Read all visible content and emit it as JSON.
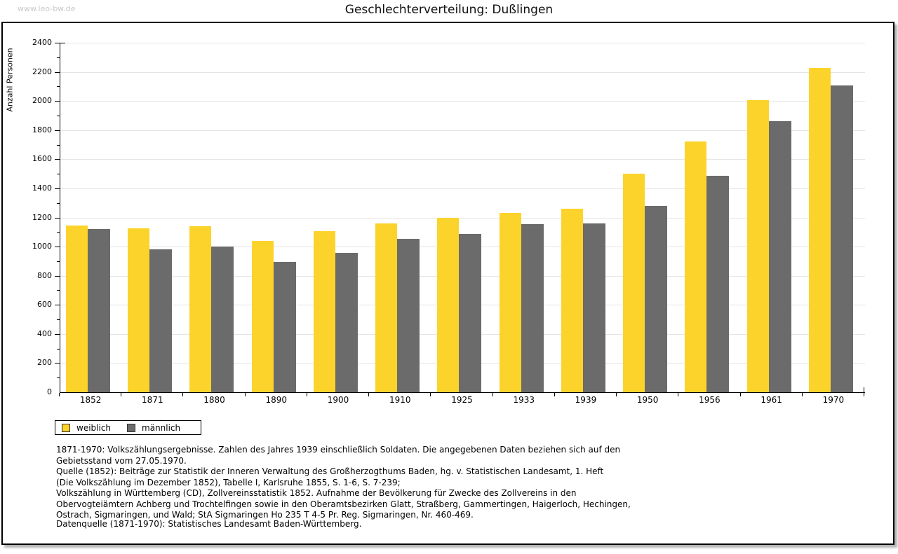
{
  "watermark": "www.leo-bw.de",
  "chart_data": {
    "type": "bar",
    "title": "Geschlechterverteilung: Dußlingen",
    "xlabel": "",
    "ylabel": "Anzahl Personen",
    "ylim": [
      0,
      2400
    ],
    "ytick_step": 200,
    "minor_tick_step": 100,
    "yticks": [
      0,
      200,
      400,
      600,
      800,
      1000,
      1200,
      1400,
      1600,
      1800,
      2000,
      2200,
      2400
    ],
    "grid": true,
    "legend_position": "bottom-left",
    "categories": [
      "1852",
      "1871",
      "1880",
      "1890",
      "1900",
      "1910",
      "1925",
      "1933",
      "1939",
      "1950",
      "1956",
      "1961",
      "1970"
    ],
    "series": [
      {
        "name": "weiblich",
        "color": "#FCD32B",
        "values": [
          1145,
          1125,
          1140,
          1040,
          1105,
          1160,
          1200,
          1230,
          1260,
          1500,
          1720,
          2005,
          2225
        ]
      },
      {
        "name": "männlich",
        "color": "#6B6B6B",
        "values": [
          1120,
          980,
          1000,
          895,
          955,
          1055,
          1085,
          1155,
          1160,
          1280,
          1485,
          1860,
          2105
        ]
      }
    ],
    "colors": {
      "gridline": "#e4e4e4",
      "axis": "#000000"
    }
  },
  "notes": [
    "1871-1970: Volkszählungsergebnisse. Zahlen des Jahres 1939 einschließlich Soldaten. Die angegebenen Daten beziehen sich auf den",
    "Gebietsstand vom 27.05.1970.",
    "Quelle (1852): Beiträge zur Statistik der Inneren Verwaltung des Großherzogthums Baden, hg. v. Statistischen Landesamt, 1. Heft",
    "(Die Volkszählung im Dezember 1852), Tabelle I, Karlsruhe 1855, S. 1-6, S. 7-239;",
    "Volkszählung in Württemberg (CD), Zollvereinsstatistik 1852. Aufnahme der Bevölkerung für Zwecke des Zollvereins in den",
    "Obervogteiämtern Achberg und Trochtelfingen sowie in den Oberamtsbezirken Glatt, Straßberg, Gammertingen, Haigerloch, Hechingen,",
    "Ostrach, Sigmaringen, und Wald; StA Sigmaringen Ho 235 T 4-5 Pr. Reg. Sigmaringen, Nr. 460-469."
  ],
  "datasource": "Datenquelle (1871-1970): Statistisches Landesamt Baden-Württemberg."
}
